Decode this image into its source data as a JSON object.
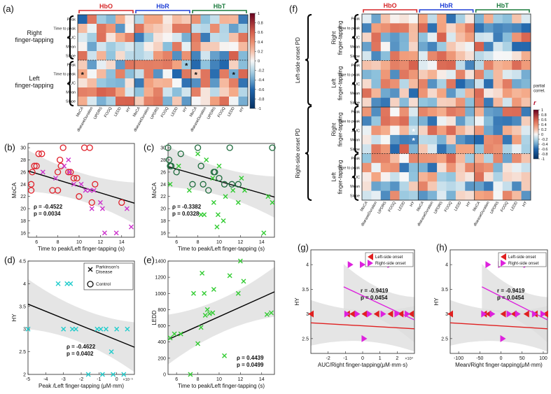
{
  "panel_letters": [
    "(a)",
    "(b)",
    "(c)",
    "(d)",
    "(e)",
    "(f)",
    "(g)",
    "(h)"
  ],
  "heatmap_a": {
    "groups": [
      "HbO",
      "HbR",
      "HbT"
    ],
    "group_colors": [
      "#d62728",
      "#1f3fd6",
      "#1a7a3c"
    ],
    "block_labels": [
      "Right\nfinger-tapping",
      "Left\nfinger-tapping"
    ],
    "row_labels": [
      "Peak",
      "Time to peak",
      "AUC",
      "Mean",
      "Slope",
      "Peak",
      "Time to peak",
      "AUC",
      "Mean",
      "Slope"
    ],
    "col_labels": [
      "MoCA",
      "diseaseDuration",
      "UPDRS",
      "FOGQ",
      "LEDD",
      "HY"
    ],
    "colorbar_ticks": [
      "1",
      "0.8",
      "0.6",
      "0.4",
      "0.2",
      "0",
      "-0.2",
      "-0.4",
      "-0.6",
      "-0.8",
      "-1"
    ],
    "star_symbol": "*",
    "stars": [
      [
        6,
        0
      ],
      [
        5,
        11
      ],
      [
        6,
        12
      ],
      [
        6,
        16
      ]
    ]
  },
  "heatmap_f": {
    "groups": [
      "HbO",
      "HbR",
      "HbT"
    ],
    "outer_labels": [
      "Left-side onset PD",
      "Right-side onset PD"
    ],
    "block_labels": [
      "Right\nfinger-tapping",
      "Left\nfinger-tapping",
      "Right\nfinger-tapping",
      "Left\nfinger-tapping"
    ],
    "row_labels": [
      "Peak",
      "Time to peak",
      "AUC",
      "Mean",
      "Slope",
      "Peak",
      "Time to peak",
      "AUC",
      "Mean",
      "Slope",
      "Peak",
      "Time to peak",
      "AUC",
      "Mean",
      "Slope",
      "Peak",
      "Time to peak",
      "AUC",
      "Mean",
      "Slope"
    ],
    "col_labels": [
      "MoCA",
      "diseaseDuration",
      "UPDRS",
      "FOGQ",
      "LEDD",
      "HY"
    ],
    "colorbar_title": "partial\ncorrel.",
    "colorbar_symbol": "r",
    "colorbar_ticks": [
      "1",
      "0.8",
      "0.6",
      "0.4",
      "0.2",
      "0",
      "-0.2",
      "-0.4",
      "-0.6",
      "-0.8",
      "-1"
    ],
    "star_symbol": "*",
    "stars": [
      [
        12,
        5
      ],
      [
        13,
        5
      ]
    ]
  },
  "chart_data": [
    {
      "panel": "(b)",
      "type": "scatter",
      "xlabel": "Time to peak/Left finger-tapping (s)",
      "ylabel": "MoCA",
      "xlim": [
        5.2,
        15.2
      ],
      "ylim": [
        15.3,
        30.7
      ],
      "xticks": [
        "6",
        "8",
        "10",
        "12",
        "14"
      ],
      "yticks": [
        "16",
        "18",
        "20",
        "22",
        "24",
        "26",
        "28",
        "30"
      ],
      "series": [
        {
          "name": "Control",
          "marker": "circle",
          "color": "#e0202a",
          "points": [
            [
              5.5,
              24
            ],
            [
              5.5,
              23
            ],
            [
              5.6,
              26
            ],
            [
              5.8,
              27
            ],
            [
              6.0,
              27
            ],
            [
              6.2,
              29
            ],
            [
              6.5,
              29
            ],
            [
              7.5,
              23
            ],
            [
              8.0,
              23
            ],
            [
              8.0,
              26
            ],
            [
              8.2,
              28
            ],
            [
              8.3,
              27
            ],
            [
              8.5,
              30
            ],
            [
              9.0,
              26
            ],
            [
              9.2,
              26
            ],
            [
              9.5,
              25
            ],
            [
              9.8,
              25
            ],
            [
              10.0,
              22
            ],
            [
              10.5,
              30
            ],
            [
              11.0,
              30
            ],
            [
              11.2,
              21
            ],
            [
              11.5,
              24
            ],
            [
              14.0,
              21
            ]
          ]
        },
        {
          "name": "Parkinson's Disease",
          "marker": "x",
          "color": "#cc33cc",
          "points": [
            [
              6.6,
              26
            ],
            [
              7.8,
              25
            ],
            [
              8.6,
              27
            ],
            [
              9.0,
              28
            ],
            [
              9.1,
              26
            ],
            [
              9.5,
              24
            ],
            [
              10.2,
              24
            ],
            [
              10.6,
              23
            ],
            [
              11.0,
              23
            ],
            [
              11.4,
              23
            ],
            [
              11.2,
              20
            ],
            [
              12.0,
              21
            ],
            [
              12.2,
              20
            ],
            [
              12.4,
              16
            ],
            [
              13.5,
              16
            ],
            [
              14.5,
              20
            ],
            [
              14.9,
              17
            ]
          ]
        }
      ],
      "fit": {
        "x": [
          5.2,
          15.2
        ],
        "y": [
          26.2,
          20.9
        ]
      },
      "stats": {
        "rho": "ρ = -0.4522",
        "p": "p = 0.0034"
      }
    },
    {
      "panel": "(c)",
      "type": "scatter",
      "xlabel": "Time to peak/Left finger-tapping (s)",
      "ylabel": "MoCA",
      "xlim": [
        5.2,
        15.2
      ],
      "ylim": [
        15.3,
        30.7
      ],
      "xticks": [
        "6",
        "8",
        "10",
        "12",
        "14"
      ],
      "yticks": [
        "16",
        "18",
        "20",
        "22",
        "24",
        "26",
        "28",
        "30"
      ],
      "series": [
        {
          "name": "Control",
          "marker": "circle",
          "color": "#1d6b3c",
          "points": [
            [
              5.2,
              30
            ],
            [
              5.3,
              28
            ],
            [
              5.4,
              27
            ],
            [
              5.5,
              27
            ],
            [
              6.0,
              26
            ],
            [
              6.4,
              29
            ],
            [
              7.5,
              24
            ],
            [
              8.0,
              30
            ],
            [
              8.3,
              27
            ],
            [
              8.5,
              24
            ],
            [
              9.0,
              23
            ],
            [
              9.5,
              26
            ],
            [
              9.6,
              26
            ],
            [
              10.0,
              25
            ],
            [
              10.5,
              24
            ],
            [
              11.0,
              30
            ],
            [
              11.2,
              24
            ],
            [
              11.8,
              24
            ],
            [
              15.0,
              30
            ]
          ]
        },
        {
          "name": "Parkinson's Disease",
          "marker": "x",
          "color": "#33cc33",
          "points": [
            [
              5.4,
              24
            ],
            [
              6.2,
              27
            ],
            [
              7.2,
              23
            ],
            [
              8.0,
              29
            ],
            [
              8.3,
              19
            ],
            [
              8.6,
              19
            ],
            [
              8.8,
              28
            ],
            [
              9.4,
              25
            ],
            [
              9.5,
              21
            ],
            [
              9.8,
              17
            ],
            [
              9.9,
              19
            ],
            [
              10.0,
              27
            ],
            [
              10.4,
              18
            ],
            [
              10.6,
              22
            ],
            [
              11.3,
              23
            ],
            [
              11.8,
              21
            ],
            [
              12.1,
              25
            ],
            [
              12.4,
              23
            ],
            [
              14.2,
              16
            ],
            [
              14.6,
              22
            ],
            [
              15.0,
              21
            ]
          ]
        }
      ],
      "fit": {
        "x": [
          5.2,
          15.2
        ],
        "y": [
          26.9,
          21.9
        ]
      },
      "stats": {
        "rho": "ρ = -0.3382",
        "p": "p = 0.0328"
      }
    },
    {
      "panel": "(d)",
      "type": "scatter",
      "xlabel": "Peak /Left finger-tapping (μM·mm)",
      "ylabel": "HY",
      "x_exponent": "×10⁻⁵",
      "xlim": [
        -5,
        1
      ],
      "ylim": [
        2,
        4.5
      ],
      "xticks": [
        "-5",
        "-4",
        "-3",
        "-2",
        "-1",
        "0"
      ],
      "yticks": [
        "2",
        "2.5",
        "3",
        "3.5",
        "4",
        "4.5"
      ],
      "series": [
        {
          "name": "Parkinson's Disease",
          "marker": "x",
          "color": "#22cccc",
          "points": [
            [
              -5.0,
              3
            ],
            [
              -3.3,
              4
            ],
            [
              -3.0,
              3
            ],
            [
              -2.8,
              4
            ],
            [
              -2.6,
              4
            ],
            [
              -2.5,
              3
            ],
            [
              -2.3,
              3
            ],
            [
              -1.6,
              2
            ],
            [
              -1.1,
              3
            ],
            [
              -0.9,
              3
            ],
            [
              -0.8,
              2
            ],
            [
              -0.6,
              3
            ],
            [
              -0.3,
              2.5
            ],
            [
              -0.2,
              2
            ],
            [
              0.0,
              3
            ],
            [
              0.4,
              2
            ],
            [
              0.6,
              3
            ]
          ]
        }
      ],
      "fit": {
        "x": [
          -5,
          1
        ],
        "y": [
          3.55,
          2.6
        ]
      },
      "legend": [
        "Parkinson's\nDisease",
        "Control"
      ],
      "stats": {
        "rho": "ρ = -0.4622",
        "p": "p = 0.0402"
      }
    },
    {
      "panel": "(e)",
      "type": "scatter",
      "xlabel": "Time to peak/Left finger-tapping (s)",
      "ylabel": "LEDD",
      "xlim": [
        5.2,
        15.2
      ],
      "ylim": [
        0,
        1400
      ],
      "xticks": [
        "6",
        "8",
        "10",
        "12",
        "14"
      ],
      "yticks": [
        "0",
        "200",
        "400",
        "600",
        "800",
        "1000",
        "1200",
        "1400"
      ],
      "series": [
        {
          "name": "Parkinson's Disease",
          "marker": "x",
          "color": "#33cc33",
          "points": [
            [
              5.4,
              450
            ],
            [
              5.8,
              500
            ],
            [
              6.4,
              500
            ],
            [
              7.3,
              0
            ],
            [
              7.6,
              1000
            ],
            [
              8.0,
              380
            ],
            [
              8.3,
              580
            ],
            [
              8.4,
              1250
            ],
            [
              8.6,
              1000
            ],
            [
              8.7,
              730
            ],
            [
              8.9,
              800
            ],
            [
              9.1,
              750
            ],
            [
              9.4,
              760
            ],
            [
              9.5,
              1050
            ],
            [
              10.5,
              230
            ],
            [
              11.0,
              1220
            ],
            [
              11.8,
              1000
            ],
            [
              12.0,
              1400
            ],
            [
              12.3,
              1150
            ],
            [
              14.5,
              740
            ],
            [
              14.9,
              760
            ]
          ]
        }
      ],
      "fit": {
        "x": [
          5.2,
          15.2
        ],
        "y": [
          430,
          1020
        ]
      },
      "stats": {
        "rho": "ρ = 0.4439",
        "p": "p = 0.0499"
      }
    },
    {
      "panel": "(g)",
      "type": "scatter",
      "xlabel": "AUC/Right finger-tapping(μM·mm·s)",
      "ylabel": "HY",
      "x_exponent": "×10⁴",
      "xlim": [
        -3,
        3
      ],
      "ylim": [
        2.2,
        4.3
      ],
      "xticks": [
        "-2",
        "-1",
        "0",
        "1",
        "2"
      ],
      "yticks": [
        "2.5",
        "3",
        "3.5",
        "4"
      ],
      "series": [
        {
          "name": "Left-side onset",
          "marker": "triangle-left",
          "color": "#e02020",
          "points": [
            [
              -3.0,
              3
            ],
            [
              -0.9,
              3
            ],
            [
              -0.6,
              3
            ],
            [
              0.1,
              3
            ],
            [
              0.8,
              3
            ],
            [
              1.6,
              3
            ],
            [
              2.2,
              3
            ],
            [
              2.8,
              3
            ]
          ]
        },
        {
          "name": "Right-side onset",
          "marker": "triangle-right",
          "color": "#dd22dd",
          "points": [
            [
              -0.9,
              3
            ],
            [
              -0.7,
              4
            ],
            [
              -0.3,
              3
            ],
            [
              0.0,
              4
            ],
            [
              0.1,
              2.5
            ],
            [
              0.4,
              3
            ],
            [
              1.2,
              3
            ],
            [
              1.6,
              4
            ],
            [
              2.0,
              3
            ],
            [
              2.6,
              3
            ]
          ]
        }
      ],
      "fits": [
        {
          "name": "Left-side onset",
          "color": "#e02020",
          "x": [
            -3,
            3
          ],
          "y": [
            2.82,
            2.7
          ]
        },
        {
          "name": "Right-side onset",
          "color": "#dd22dd",
          "x": [
            -1.1,
            3
          ],
          "y": [
            3.55,
            2.88
          ]
        }
      ],
      "stats": {
        "rho": "r = -0.9419",
        "p": "p = 0.0454"
      }
    },
    {
      "panel": "(h)",
      "type": "scatter",
      "xlabel": "Mean/Right finger-tapping(μM·mm)",
      "ylabel": "HY",
      "xlim": [
        -120,
        110
      ],
      "ylim": [
        2.2,
        4.3
      ],
      "xticks": [
        "-100",
        "-50",
        "0",
        "50",
        "100"
      ],
      "yticks": [
        "2.5",
        "3",
        "3.5",
        "4"
      ],
      "series": [
        {
          "name": "Left-side onset",
          "marker": "triangle-left",
          "color": "#e02020",
          "points": [
            [
              -120,
              3
            ],
            [
              -40,
              3
            ],
            [
              -30,
              3
            ],
            [
              5,
              3
            ],
            [
              30,
              3
            ],
            [
              60,
              3
            ],
            [
              80,
              3
            ],
            [
              105,
              3
            ]
          ]
        },
        {
          "name": "Right-side onset",
          "marker": "triangle-right",
          "color": "#dd22dd",
          "points": [
            [
              -40,
              3
            ],
            [
              -30,
              4
            ],
            [
              -20,
              3
            ],
            [
              0,
              4
            ],
            [
              5,
              2.5
            ],
            [
              20,
              3
            ],
            [
              40,
              3
            ],
            [
              60,
              4
            ],
            [
              80,
              3
            ],
            [
              100,
              3
            ]
          ]
        }
      ],
      "fits": [
        {
          "name": "Left-side onset",
          "color": "#e02020",
          "x": [
            -120,
            110
          ],
          "y": [
            2.82,
            2.7
          ]
        },
        {
          "name": "Right-side onset",
          "color": "#dd22dd",
          "x": [
            -45,
            110
          ],
          "y": [
            3.55,
            2.88
          ]
        }
      ],
      "stats": {
        "rho": "r = -0.9419",
        "p": "p = 0.0454"
      }
    }
  ]
}
